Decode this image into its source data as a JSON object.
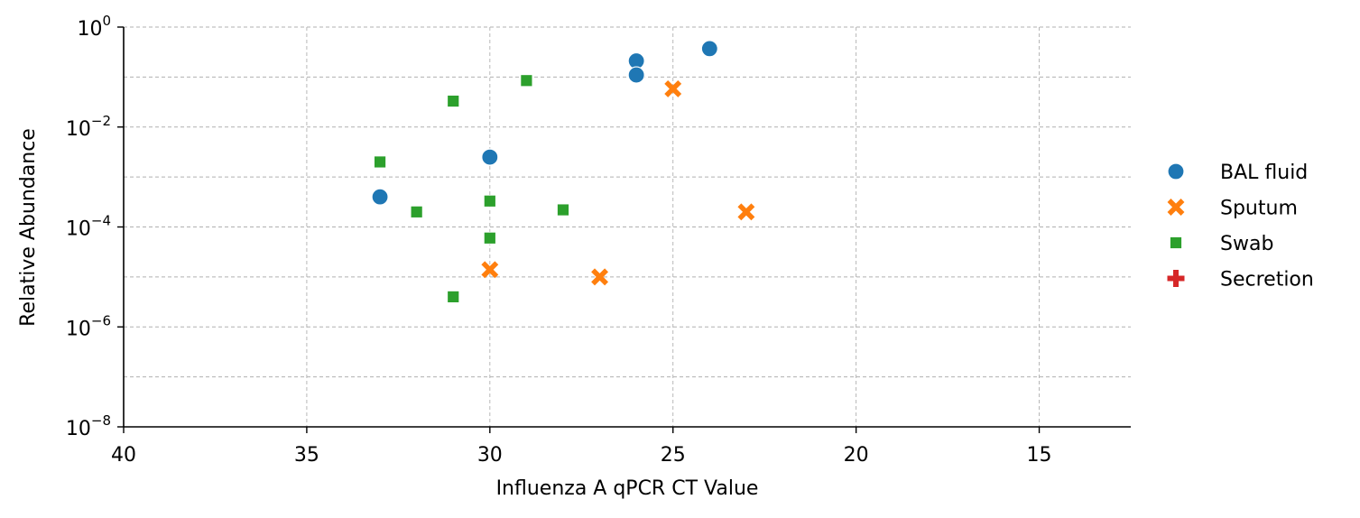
{
  "chart_data": {
    "type": "scatter",
    "title": "",
    "xlabel": "Influenza A qPCR CT Value",
    "ylabel": "Relative Abundance",
    "x_inverted": true,
    "xlim": [
      40,
      12.5
    ],
    "ylim_log10": [
      -8,
      0
    ],
    "y_scale": "log",
    "grid": true,
    "legend_position": "right",
    "x_ticks": [
      {
        "value": 40,
        "label": "40"
      },
      {
        "value": 35,
        "label": "35"
      },
      {
        "value": 30,
        "label": "30"
      },
      {
        "value": 25,
        "label": "25"
      },
      {
        "value": 20,
        "label": "20"
      },
      {
        "value": 15,
        "label": "15"
      }
    ],
    "y_ticks": [
      {
        "exp": 0,
        "label_base": "10",
        "label_exp": "0"
      },
      {
        "exp": -2,
        "label_base": "10",
        "label_exp": "−2"
      },
      {
        "exp": -4,
        "label_base": "10",
        "label_exp": "−4"
      },
      {
        "exp": -6,
        "label_base": "10",
        "label_exp": "−6"
      },
      {
        "exp": -8,
        "label_base": "10",
        "label_exp": "−8"
      }
    ],
    "series": [
      {
        "name": "BAL fluid",
        "marker": "circle",
        "color": "#1f77b4",
        "points": [
          {
            "x": 24,
            "y": 0.37
          },
          {
            "x": 26,
            "y": 0.21
          },
          {
            "x": 26,
            "y": 0.11
          },
          {
            "x": 30,
            "y": 0.0025
          },
          {
            "x": 33,
            "y": 0.0004
          }
        ]
      },
      {
        "name": "Sputum",
        "marker": "x",
        "color": "#ff7f0e",
        "points": [
          {
            "x": 25,
            "y": 0.058
          },
          {
            "x": 23,
            "y": 0.0002
          },
          {
            "x": 30,
            "y": 1.4e-05
          },
          {
            "x": 27,
            "y": 1e-05
          }
        ]
      },
      {
        "name": "Swab",
        "marker": "square",
        "color": "#2ca02c",
        "points": [
          {
            "x": 29,
            "y": 0.085
          },
          {
            "x": 31,
            "y": 0.033
          },
          {
            "x": 33,
            "y": 0.002
          },
          {
            "x": 30,
            "y": 0.00033
          },
          {
            "x": 28,
            "y": 0.00022
          },
          {
            "x": 32,
            "y": 0.0002
          },
          {
            "x": 30,
            "y": 6e-05
          },
          {
            "x": 31,
            "y": 4e-06
          }
        ]
      },
      {
        "name": "Secretion",
        "marker": "plus",
        "color": "#d62728",
        "points": []
      }
    ]
  }
}
